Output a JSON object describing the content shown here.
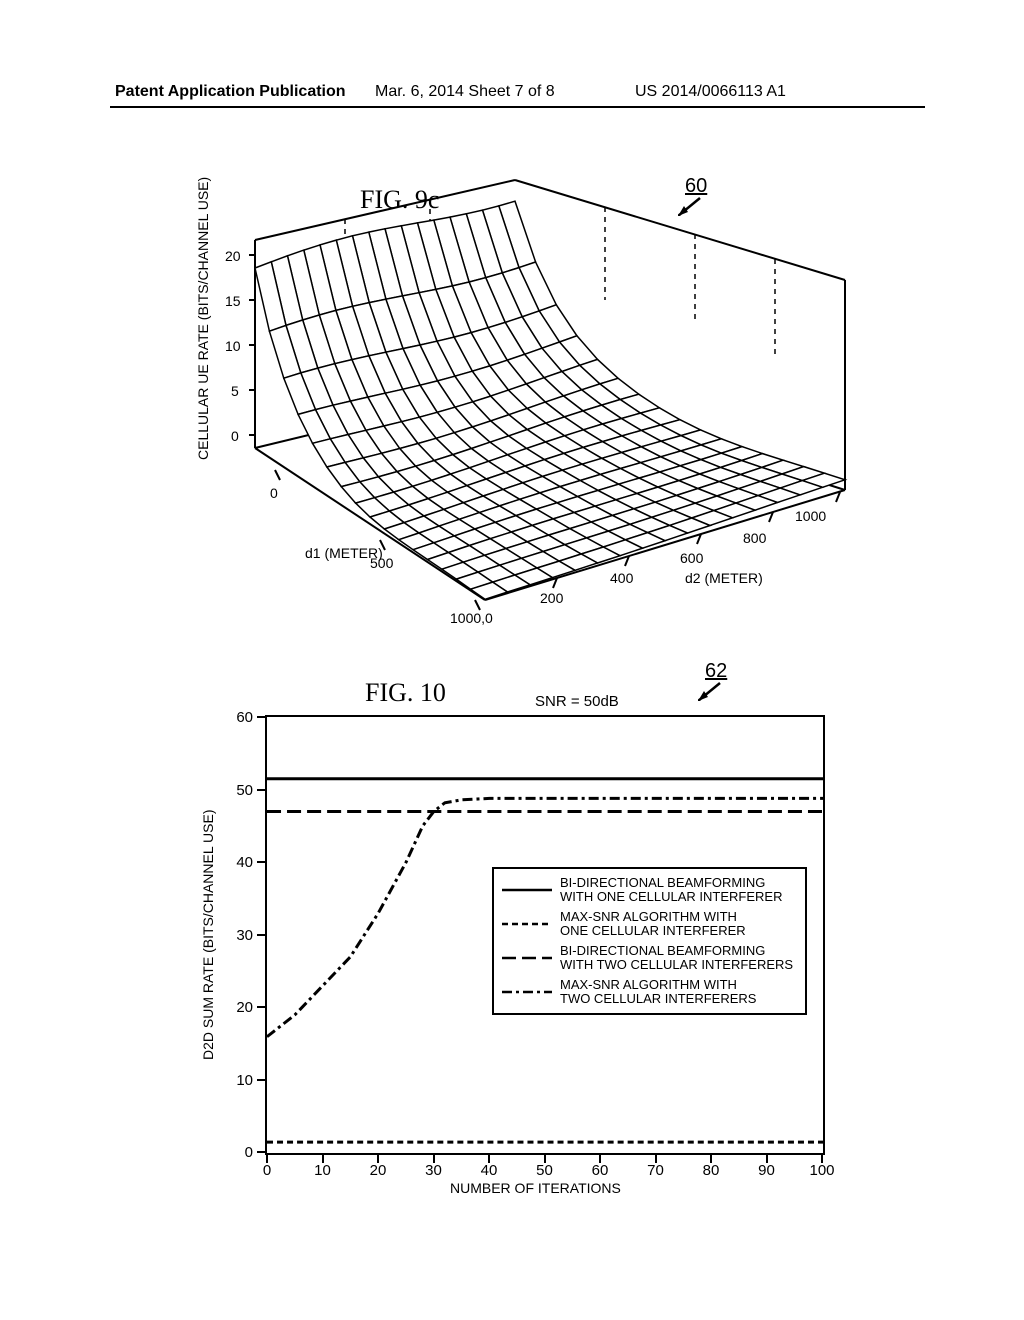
{
  "header": {
    "left": "Patent Application Publication",
    "mid": "Mar. 6, 2014   Sheet 7 of 8",
    "right": "US 2014/0066113 A1"
  },
  "fig9c": {
    "title": "FIG. 9c",
    "callout": "60",
    "z_label": "CELLULAR UE RATE (BITS/CHANNEL USE)",
    "x1_label": "d1 (METER)",
    "x2_label": "d2 (METER)",
    "z_ticks": [
      0,
      5,
      10,
      15,
      20
    ],
    "x1_ticks": [
      "0",
      "500",
      "1000,0"
    ],
    "x2_ticks": [
      "200",
      "400",
      "600",
      "800",
      "1000"
    ],
    "colors": {
      "axis": "#000000",
      "grid": "#000000"
    }
  },
  "fig10": {
    "title": "FIG. 10",
    "subtitle": "SNR = 50dB",
    "callout": "62",
    "y_label": "D2D SUM RATE (BITS/CHANNEL USE)",
    "x_label": "NUMBER OF ITERATIONS",
    "xlim": [
      0,
      100
    ],
    "ylim": [
      0,
      60
    ],
    "xtick_step": 10,
    "ytick_step": 10,
    "colors": {
      "border": "#000000",
      "line": "#000000",
      "background": "#ffffff"
    },
    "legend": [
      {
        "label_l1": "BI-DIRECTIONAL BEAMFORMING",
        "label_l2": "WITH ONE CELLULAR INTERFERER",
        "dash": ""
      },
      {
        "label_l1": "MAX-SNR ALGORITHM WITH",
        "label_l2": "ONE CELLULAR INTERFERER",
        "dash": "6,4"
      },
      {
        "label_l1": "BI-DIRECTIONAL BEAMFORMING",
        "label_l2": "WITH TWO CELLULAR INTERFERERS",
        "dash": "14,6"
      },
      {
        "label_l1": "MAX-SNR ALGORITHM WITH",
        "label_l2": "TWO CELLULAR INTERFERERS",
        "dash": "10,4,3,4"
      }
    ],
    "series": [
      {
        "dash": "",
        "width": 3,
        "points": [
          [
            0,
            51.5
          ],
          [
            100,
            51.5
          ]
        ]
      },
      {
        "dash": "14,6",
        "width": 3,
        "points": [
          [
            0,
            47
          ],
          [
            100,
            47
          ]
        ]
      },
      {
        "dash": "10,4,3,4",
        "width": 3,
        "points": [
          [
            0,
            16
          ],
          [
            5,
            19
          ],
          [
            10,
            23
          ],
          [
            15,
            27
          ],
          [
            20,
            33
          ],
          [
            25,
            40
          ],
          [
            28,
            45
          ],
          [
            30,
            47
          ],
          [
            32,
            48.2
          ],
          [
            35,
            48.6
          ],
          [
            40,
            48.8
          ],
          [
            100,
            48.8
          ]
        ]
      },
      {
        "dash": "6,4",
        "width": 3,
        "points": [
          [
            0,
            1.5
          ],
          [
            100,
            1.5
          ]
        ]
      }
    ]
  }
}
